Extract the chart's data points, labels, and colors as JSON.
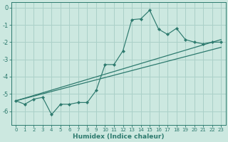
{
  "xlabel": "Humidex (Indice chaleur)",
  "bg_color": "#cce8e0",
  "grid_color": "#aad0c8",
  "line_color": "#2d7a6e",
  "xlim": [
    -0.5,
    23.5
  ],
  "ylim": [
    -6.8,
    0.3
  ],
  "xticks": [
    0,
    1,
    2,
    3,
    4,
    5,
    6,
    7,
    8,
    9,
    10,
    11,
    12,
    13,
    14,
    15,
    16,
    17,
    18,
    19,
    20,
    21,
    22,
    23
  ],
  "yticks": [
    0,
    -1,
    -2,
    -3,
    -4,
    -5,
    -6
  ],
  "x_data": [
    0,
    1,
    2,
    3,
    4,
    5,
    6,
    7,
    8,
    9,
    10,
    11,
    12,
    13,
    14,
    15,
    16,
    17,
    18,
    19,
    20,
    21,
    22,
    23
  ],
  "y_curve": [
    -5.4,
    -5.6,
    -5.3,
    -5.2,
    -6.2,
    -5.6,
    -5.6,
    -5.5,
    -5.5,
    -4.8,
    -3.3,
    -3.3,
    -2.5,
    -0.7,
    -0.65,
    -0.15,
    -1.25,
    -1.55,
    -1.2,
    -1.85,
    -2.0,
    -2.1,
    -2.0,
    -2.0
  ],
  "line1_x": [
    0,
    23
  ],
  "line1_y": [
    -5.4,
    -1.85
  ],
  "line2_x": [
    0,
    23
  ],
  "line2_y": [
    -5.4,
    -2.3
  ]
}
